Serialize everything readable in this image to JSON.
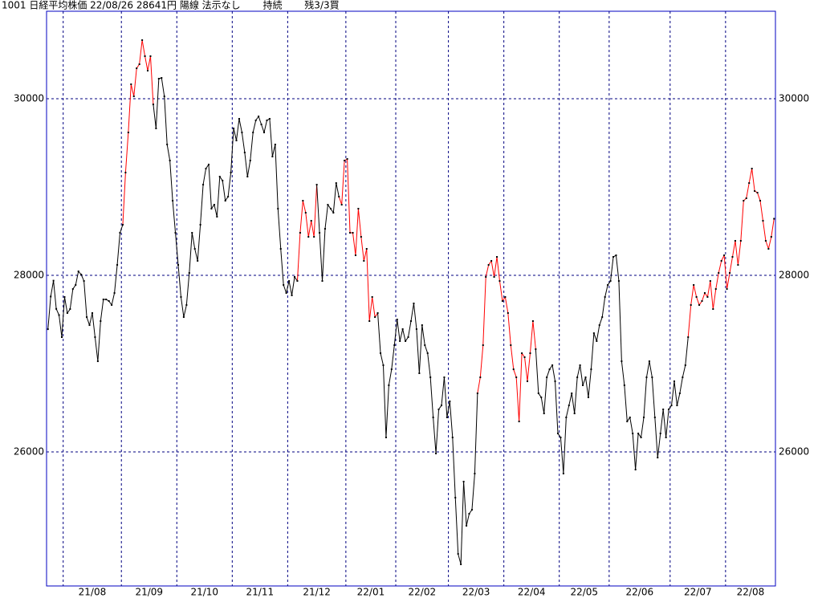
{
  "chart_data": {
    "type": "line",
    "title": "1001 日経平均株価 22/08/26 28641円 陽線 法示なし　　 持続　　 残3/3買",
    "ylim": [
      24482,
      30991
    ],
    "yticks": [
      26000,
      28000,
      30000
    ],
    "grid": true,
    "groups": [
      {
        "label": null,
        "values": [
          27390,
          27760,
          27940,
          27620,
          27550,
          27300
        ],
        "colors": [
          "#000",
          "#000",
          "#000",
          "#000",
          "#000",
          "#000"
        ]
      },
      {
        "label": "21/08",
        "values": [
          27755,
          27573,
          27618,
          27845,
          27891,
          28045,
          28009,
          27936,
          27527,
          27436,
          27573,
          27300,
          27027,
          27482,
          27727,
          27727,
          27709,
          27664,
          27800,
          28118,
          28482
        ],
        "colors": [
          "#000",
          "#000",
          "#000",
          "#000",
          "#000",
          "#000",
          "#000",
          "#000",
          "#000",
          "#000",
          "#000",
          "#000",
          "#000",
          "#000",
          "#000",
          "#000",
          "#000",
          "#000",
          "#000",
          "#000",
          "#000"
        ]
      },
      {
        "label": "21/09",
        "values": [
          28573,
          29164,
          29618,
          30164,
          30027,
          30345,
          30391,
          30664,
          30482,
          30318,
          30482,
          29936,
          29664,
          30227,
          30236,
          30027,
          29482,
          29300,
          28845,
          28482
        ],
        "colors": [
          "#000",
          "#f00",
          "#f00",
          "#f00",
          "#f00",
          "#f00",
          "#f00",
          "#f00",
          "#f00",
          "#f00",
          "#f00",
          "#f00",
          "#000",
          "#000",
          "#000",
          "#000",
          "#000",
          "#000",
          "#000",
          "#000"
        ]
      },
      {
        "label": "21/10",
        "values": [
          28118,
          27755,
          27527,
          27664,
          28027,
          28482,
          28300,
          28164,
          28573,
          29027,
          29209,
          29255,
          28755,
          28800,
          28664,
          29118,
          29073,
          28845,
          28891,
          29164
        ],
        "colors": [
          "#000",
          "#000",
          "#000",
          "#000",
          "#000",
          "#000",
          "#000",
          "#000",
          "#000",
          "#000",
          "#000",
          "#000",
          "#000",
          "#000",
          "#000",
          "#000",
          "#000",
          "#000",
          "#000",
          "#000"
        ]
      },
      {
        "label": "21/11",
        "values": [
          29664,
          29527,
          29773,
          29618,
          29391,
          29118,
          29300,
          29618,
          29755,
          29800,
          29709,
          29618,
          29755,
          29773,
          29345,
          29482,
          28755,
          28300,
          27891,
          27800
        ],
        "colors": [
          "#000",
          "#000",
          "#000",
          "#000",
          "#000",
          "#000",
          "#000",
          "#000",
          "#000",
          "#000",
          "#000",
          "#000",
          "#000",
          "#000",
          "#000",
          "#000",
          "#000",
          "#000",
          "#000",
          "#000"
        ]
      },
      {
        "label": "21/12",
        "values": [
          27936,
          27773,
          27982,
          27936,
          28482,
          28845,
          28709,
          28436,
          28618,
          28436,
          29027,
          28482,
          27936,
          28527,
          28800,
          28755,
          28709,
          29045,
          28891,
          28800,
          29300
        ],
        "colors": [
          "#000",
          "#000",
          "#000",
          "#000",
          "#f00",
          "#f00",
          "#f00",
          "#f00",
          "#f00",
          "#f00",
          "#f00",
          "#000",
          "#000",
          "#000",
          "#000",
          "#000",
          "#000",
          "#000",
          "#000",
          "#f00",
          "#f00"
        ]
      },
      {
        "label": "22/01",
        "values": [
          29318,
          28482,
          28482,
          28227,
          28755,
          28436,
          28164,
          28300,
          27482,
          27755,
          27527,
          27573,
          27118,
          26982,
          26164,
          26755,
          26936,
          27209
        ],
        "colors": [
          "#f00",
          "#f00",
          "#f00",
          "#f00",
          "#f00",
          "#f00",
          "#f00",
          "#f00",
          "#f00",
          "#f00",
          "#f00",
          "#f00",
          "#000",
          "#000",
          "#000",
          "#000",
          "#000",
          "#000"
        ]
      },
      {
        "label": "22/02",
        "values": [
          27500,
          27255,
          27391,
          27255,
          27300,
          27482,
          27682,
          27391,
          26891,
          27436,
          27209,
          27118,
          26845,
          26391,
          25982,
          26482,
          26527,
          26845,
          26391
        ],
        "colors": [
          "#000",
          "#000",
          "#000",
          "#000",
          "#000",
          "#000",
          "#000",
          "#000",
          "#000",
          "#000",
          "#000",
          "#000",
          "#000",
          "#000",
          "#000",
          "#000",
          "#000",
          "#000",
          "#000"
        ]
      },
      {
        "label": "22/03",
        "values": [
          26573,
          26164,
          25482,
          24845,
          24727,
          25664,
          25164,
          25300,
          25345,
          25755,
          26664,
          26845,
          27209,
          27982,
          28118,
          28164,
          27982,
          28209,
          27936,
          27709
        ],
        "colors": [
          "#000",
          "#000",
          "#000",
          "#000",
          "#000",
          "#000",
          "#000",
          "#000",
          "#000",
          "#000",
          "#000",
          "#f00",
          "#f00",
          "#f00",
          "#f00",
          "#f00",
          "#f00",
          "#f00",
          "#f00",
          "#f00"
        ]
      },
      {
        "label": "22/04",
        "values": [
          27755,
          27573,
          27209,
          26936,
          26845,
          26345,
          27118,
          27073,
          26800,
          27118,
          27482,
          27164,
          26664,
          26618,
          26436,
          26845,
          26936,
          26982,
          26800,
          26209
        ],
        "colors": [
          "#f00",
          "#f00",
          "#f00",
          "#f00",
          "#f00",
          "#f00",
          "#f00",
          "#f00",
          "#f00",
          "#f00",
          "#f00",
          "#f00",
          "#000",
          "#000",
          "#000",
          "#000",
          "#000",
          "#000",
          "#000",
          "#000"
        ]
      },
      {
        "label": "22/05",
        "values": [
          26164,
          25755,
          26391,
          26527,
          26664,
          26436,
          26845,
          26982,
          26755,
          26845,
          26618,
          26936,
          27345,
          27255,
          27436,
          27527,
          27755,
          27891
        ],
        "colors": [
          "#000",
          "#000",
          "#000",
          "#000",
          "#000",
          "#000",
          "#000",
          "#000",
          "#000",
          "#000",
          "#000",
          "#000",
          "#000",
          "#000",
          "#000",
          "#000",
          "#000",
          "#000"
        ]
      },
      {
        "label": "22/06",
        "values": [
          27936,
          28209,
          28227,
          27936,
          27027,
          26755,
          26345,
          26391,
          26209,
          25800,
          26209,
          26164,
          26391,
          26845,
          27027,
          26845,
          26391,
          25936,
          26209,
          26482,
          26164,
          26482
        ],
        "colors": [
          "#000",
          "#000",
          "#000",
          "#000",
          "#000",
          "#000",
          "#000",
          "#000",
          "#000",
          "#000",
          "#000",
          "#000",
          "#000",
          "#000",
          "#000",
          "#000",
          "#000",
          "#000",
          "#000",
          "#000",
          "#000",
          "#000"
        ]
      },
      {
        "label": "22/07",
        "values": [
          26527,
          26800,
          26527,
          26664,
          26845,
          26982,
          27300,
          27664,
          27891,
          27755,
          27664,
          27709,
          27800,
          27755,
          27936,
          27618,
          27845,
          28027,
          28164,
          28227
        ],
        "colors": [
          "#000",
          "#000",
          "#000",
          "#000",
          "#000",
          "#000",
          "#000",
          "#f00",
          "#f00",
          "#f00",
          "#f00",
          "#f00",
          "#f00",
          "#f00",
          "#f00",
          "#f00",
          "#f00",
          "#f00",
          "#f00",
          "#f00"
        ]
      },
      {
        "label": "22/08",
        "values": [
          27845,
          28027,
          28209,
          28391,
          28118,
          28391,
          28845,
          28873,
          29045,
          29209,
          28955,
          28936,
          28845,
          28618,
          28391,
          28300,
          28436,
          28641
        ],
        "colors": [
          "#f00",
          "#f00",
          "#f00",
          "#f00",
          "#f00",
          "#f00",
          "#f00",
          "#f00",
          "#f00",
          "#f00",
          "#f00",
          "#f00",
          "#f00",
          "#f00",
          "#f00",
          "#f00",
          "#f00",
          "#f00"
        ]
      }
    ]
  }
}
